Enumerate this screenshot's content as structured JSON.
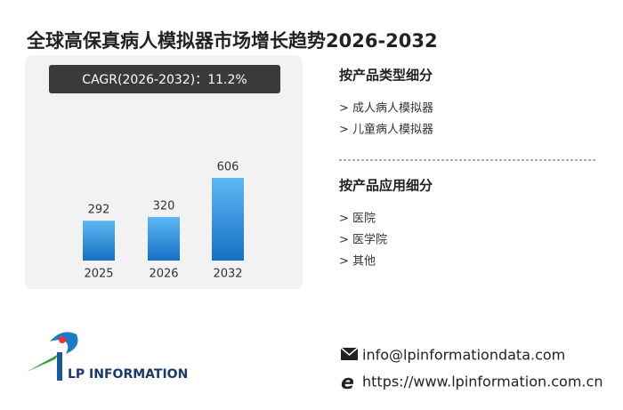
{
  "header": {
    "title": "全球高保真病人模拟器市场增长趋势2026-2032"
  },
  "chart_data": {
    "type": "bar",
    "annotation": "CAGR(2026-2032)：11.2%",
    "categories": [
      "2025",
      "2026",
      "2032"
    ],
    "values": [
      292,
      320,
      606
    ],
    "color": "#2a8ad8"
  },
  "sections": [
    {
      "title": "按产品类型细分",
      "items": [
        "> 成人病人模拟器",
        "> 儿童病人模拟器"
      ]
    },
    {
      "title": "按产品应用细分",
      "items": [
        "> 医院",
        "> 医学院",
        "> 其他"
      ]
    }
  ],
  "logo": {
    "text": "LP INFORMATION"
  },
  "contact": {
    "email": "info@lpinformationdata.com",
    "website": "https://www.lpinformation.com.cn"
  }
}
